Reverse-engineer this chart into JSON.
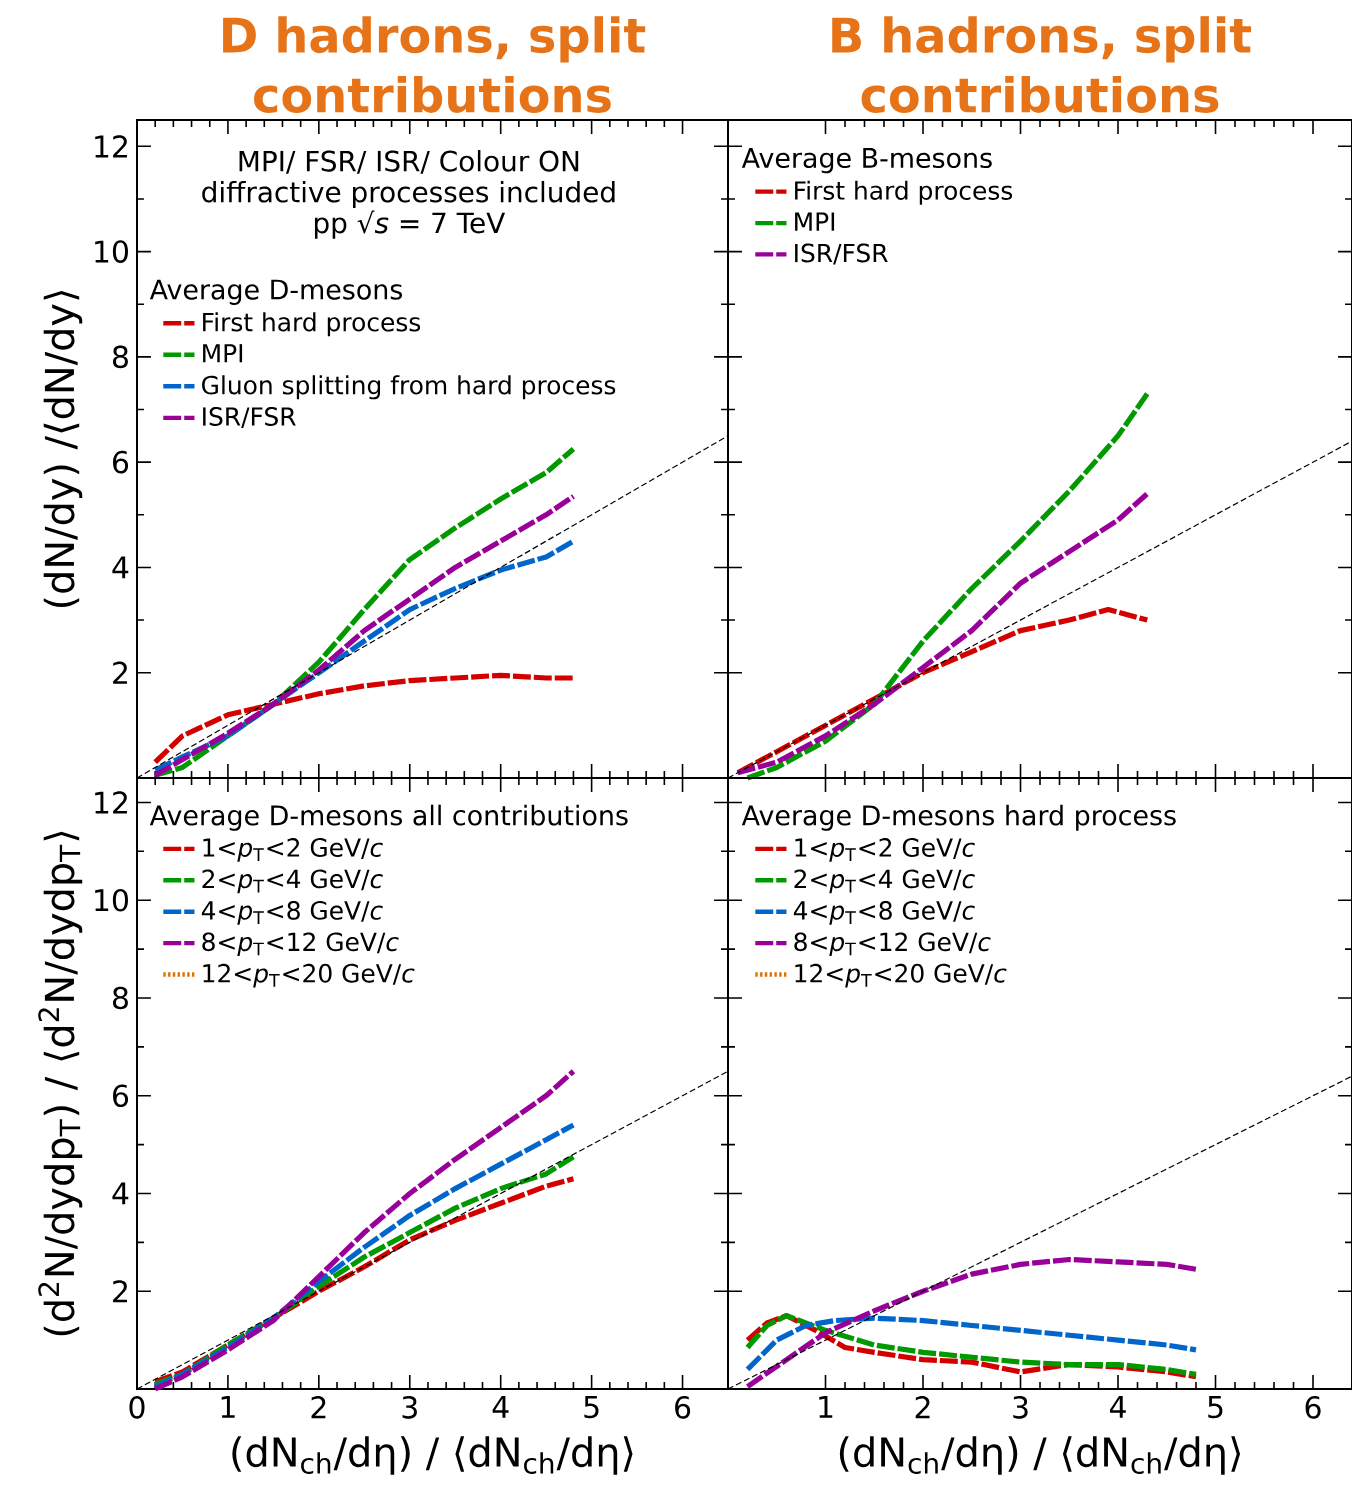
{
  "chart_data": [
    {
      "type": "line",
      "title": "D hadrons, split contributions",
      "ylabel": "(dN/dy) /⟨dN/dy⟩",
      "legend_title": "Average D-mesons",
      "annotations": [
        "MPI/ FSR/ ISR/ Colour ON",
        "diffractive processes included",
        "pp √*s* = 7 TeV"
      ],
      "xlim": [
        0,
        6.5
      ],
      "ylim": [
        0,
        12.5
      ],
      "xticks": [
        0,
        1,
        2,
        3,
        4,
        5,
        6
      ],
      "yticks": [
        2,
        4,
        6,
        8,
        10,
        12
      ],
      "tick_labels": "y",
      "legend": "top left",
      "series": [
        {
          "name": "First hard process",
          "color": "#d40000",
          "line_style": "dashed",
          "x": [
            0.2,
            0.5,
            0.75,
            1,
            1.5,
            2,
            2.5,
            3,
            3.5,
            4,
            4.5,
            4.8
          ],
          "values": [
            0.3,
            0.8,
            1.0,
            1.2,
            1.4,
            1.6,
            1.75,
            1.85,
            1.9,
            1.95,
            1.9,
            1.9
          ]
        },
        {
          "name": "MPI",
          "color": "#009900",
          "line_style": "dashed",
          "x": [
            0.2,
            0.5,
            0.75,
            1,
            1.5,
            2,
            2.5,
            3,
            3.5,
            4,
            4.5,
            4.8
          ],
          "values": [
            0.05,
            0.2,
            0.5,
            0.8,
            1.4,
            2.2,
            3.2,
            4.15,
            4.75,
            5.3,
            5.8,
            6.25
          ]
        },
        {
          "name": "Gluon splitting from hard process",
          "color": "#0066cc",
          "line_style": "dashed",
          "x": [
            0.2,
            0.5,
            1,
            1.5,
            2,
            2.5,
            3,
            3.5,
            4,
            4.5,
            4.8
          ],
          "values": [
            0.15,
            0.4,
            0.8,
            1.4,
            2.0,
            2.6,
            3.2,
            3.6,
            3.95,
            4.2,
            4.5
          ]
        },
        {
          "name": "ISR/FSR",
          "color": "#990099",
          "line_style": "dashed",
          "x": [
            0.2,
            0.5,
            1,
            1.5,
            2,
            2.5,
            3,
            3.5,
            4,
            4.5,
            4.8
          ],
          "values": [
            0.05,
            0.35,
            0.85,
            1.4,
            2.05,
            2.8,
            3.4,
            4.0,
            4.5,
            5.0,
            5.35
          ]
        },
        {
          "color": "#000000",
          "line_style": "dashed",
          "x": [
            0,
            6.5
          ],
          "values": [
            0,
            6.5
          ]
        }
      ]
    },
    {
      "type": "line",
      "title": "B hadrons, split contributions",
      "legend_title": "Average B-mesons",
      "xlim": [
        0,
        6.4
      ],
      "ylim": [
        0,
        12.5
      ],
      "xticks": [
        1,
        2,
        3,
        4,
        5,
        6
      ],
      "yticks": [
        2,
        4,
        6,
        8,
        10,
        12
      ],
      "tick_labels": false,
      "legend": "top left",
      "series": [
        {
          "name": "First hard process",
          "color": "#d40000",
          "line_style": "dashed",
          "x": [
            0.1,
            0.5,
            1,
            1.5,
            2,
            2.5,
            3,
            3.5,
            3.9,
            4.3
          ],
          "values": [
            0.1,
            0.5,
            1.0,
            1.5,
            2.0,
            2.4,
            2.8,
            3.0,
            3.2,
            3.0
          ]
        },
        {
          "name": "MPI",
          "color": "#009900",
          "line_style": "dashed",
          "x": [
            0.2,
            0.5,
            1,
            1.5,
            2,
            2.5,
            3,
            3.5,
            4,
            4.3
          ],
          "values": [
            0.0,
            0.2,
            0.7,
            1.4,
            2.6,
            3.6,
            4.5,
            5.45,
            6.5,
            7.3
          ]
        },
        {
          "name": "ISR/FSR",
          "color": "#990099",
          "line_style": "dashed",
          "x": [
            0.1,
            0.5,
            1,
            1.5,
            2,
            2.5,
            3,
            3.5,
            4,
            4.3
          ],
          "values": [
            0.1,
            0.3,
            0.8,
            1.4,
            2.1,
            2.8,
            3.7,
            4.3,
            4.9,
            5.4
          ]
        },
        {
          "color": "#000000",
          "line_style": "dashed",
          "x": [
            0,
            6.4
          ],
          "values": [
            0,
            6.4
          ]
        }
      ]
    },
    {
      "type": "line",
      "xlabel": "(dN$_{ch}$/dη) / ⟨dN$_{ch}$/dη⟩",
      "ylabel": "(d$^{2}$N/dydp$_{T}$) / ⟨d$^{2}$N/dydp$_{T}$⟩",
      "legend_title": "Average D-mesons all contributions",
      "xlim": [
        0,
        6.5
      ],
      "ylim": [
        0,
        12.5
      ],
      "xticks": [
        0,
        1,
        2,
        3,
        4,
        5,
        6
      ],
      "yticks": [
        2,
        4,
        6,
        8,
        10,
        12
      ],
      "legend": "top left",
      "series": [
        {
          "name": "1<*p*$_{T}$<2 GeV/*c*",
          "color": "#d40000",
          "line_style": "dashed",
          "x": [
            0.2,
            0.5,
            1,
            1.5,
            2,
            2.5,
            3,
            3.5,
            4,
            4.5,
            4.8
          ],
          "values": [
            0.15,
            0.35,
            0.9,
            1.45,
            2.0,
            2.5,
            3.05,
            3.45,
            3.8,
            4.15,
            4.3
          ]
        },
        {
          "name": "2<*p*$_{T}$<4 GeV/*c*",
          "color": "#009900",
          "line_style": "dashed",
          "x": [
            0.2,
            0.5,
            1,
            1.5,
            2,
            2.5,
            3,
            3.5,
            4,
            4.5,
            4.8
          ],
          "values": [
            0.1,
            0.3,
            0.9,
            1.45,
            2.1,
            2.7,
            3.2,
            3.7,
            4.1,
            4.4,
            4.75
          ]
        },
        {
          "name": "4<*p*$_{T}$<8 GeV/*c*",
          "color": "#0066cc",
          "line_style": "dashed",
          "x": [
            0.2,
            0.5,
            1,
            1.5,
            2,
            2.5,
            3,
            3.5,
            4,
            4.5,
            4.8
          ],
          "values": [
            0.05,
            0.3,
            0.85,
            1.45,
            2.2,
            2.9,
            3.55,
            4.1,
            4.6,
            5.1,
            5.4
          ]
        },
        {
          "name": "8<*p*$_{T}$<12 GeV/*c*",
          "color": "#990099",
          "line_style": "dashed",
          "x": [
            0.2,
            0.5,
            1,
            1.5,
            2,
            2.5,
            3,
            3.5,
            4,
            4.5,
            4.8
          ],
          "values": [
            0.0,
            0.25,
            0.8,
            1.4,
            2.3,
            3.2,
            4.0,
            4.7,
            5.35,
            6.0,
            6.5
          ]
        },
        {
          "name": "12<*p*$_{T}$<20 GeV/*c*",
          "color": "#e07000",
          "line_style": "dotted",
          "values": [
            null
          ]
        },
        {
          "color": "#000000",
          "line_style": "dashed",
          "x": [
            0,
            6.5
          ],
          "values": [
            0,
            6.5
          ]
        }
      ]
    },
    {
      "type": "line",
      "xlabel": "(dN$_{ch}$/dη) / ⟨dN$_{ch}$/dη⟩",
      "legend_title": "Average D-mesons hard process",
      "xlim": [
        0,
        6.4
      ],
      "ylim": [
        0,
        12.5
      ],
      "xticks": [
        1,
        2,
        3,
        4,
        5,
        6
      ],
      "yticks": [
        2,
        4,
        6,
        8,
        10,
        12
      ],
      "tick_labels": "x",
      "legend": "top left",
      "series": [
        {
          "name": "1<*p*$_{T}$<2 GeV/*c*",
          "color": "#d40000",
          "line_style": "dashed",
          "x": [
            0.2,
            0.4,
            0.6,
            0.9,
            1.2,
            1.5,
            2,
            2.5,
            3,
            3.5,
            4,
            4.5,
            4.8
          ],
          "values": [
            1.0,
            1.35,
            1.5,
            1.2,
            0.85,
            0.75,
            0.6,
            0.55,
            0.35,
            0.5,
            0.45,
            0.35,
            0.25
          ]
        },
        {
          "name": "2<*p*$_{T}$<4 GeV/*c*",
          "color": "#009900",
          "line_style": "dashed",
          "x": [
            0.2,
            0.4,
            0.6,
            1,
            1.5,
            2,
            2.5,
            3,
            3.5,
            4,
            4.5,
            4.8
          ],
          "values": [
            0.85,
            1.3,
            1.5,
            1.2,
            0.9,
            0.75,
            0.65,
            0.55,
            0.5,
            0.5,
            0.4,
            0.3
          ]
        },
        {
          "name": "4<*p*$_{T}$<8 GeV/*c*",
          "color": "#0066cc",
          "line_style": "dashed",
          "x": [
            0.2,
            0.5,
            0.8,
            1.1,
            1.5,
            2,
            2.5,
            3,
            3.5,
            4,
            4.5,
            4.8
          ],
          "values": [
            0.4,
            1.0,
            1.3,
            1.4,
            1.45,
            1.4,
            1.3,
            1.2,
            1.1,
            1.0,
            0.9,
            0.8
          ]
        },
        {
          "name": "8<*p*$_{T}$<12 GeV/*c*",
          "color": "#990099",
          "line_style": "dashed",
          "x": [
            0.2,
            0.6,
            1,
            1.5,
            2,
            2.5,
            3,
            3.5,
            4,
            4.5,
            4.8
          ],
          "values": [
            0.05,
            0.6,
            1.15,
            1.6,
            2.0,
            2.35,
            2.55,
            2.65,
            2.6,
            2.55,
            2.45
          ]
        },
        {
          "name": "12<*p*$_{T}$<20 GeV/*c*",
          "color": "#e07000",
          "line_style": "dotted",
          "values": [
            null
          ]
        },
        {
          "color": "#000000",
          "line_style": "dashed",
          "x": [
            0,
            6.4
          ],
          "values": [
            0,
            6.4
          ]
        }
      ]
    }
  ]
}
